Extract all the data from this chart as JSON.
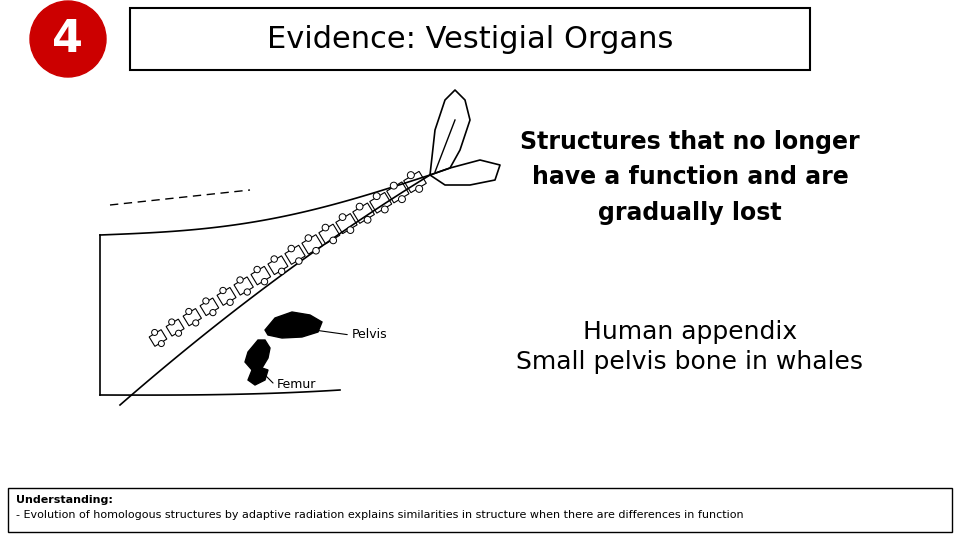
{
  "title": "Evidence: Vestigial Organs",
  "number": "4",
  "number_bg": "#cc0000",
  "number_color": "#ffffff",
  "bg_color": "#ffffff",
  "text1": "Structures that no longer\nhave a function and are\ngradually lost",
  "text2_line1": "Human appendix",
  "text2_line2": "Small pelvis bone in whales",
  "label_pelvis": "Pelvis",
  "label_femur": "Femur",
  "understanding_bold": "Understanding:",
  "understanding_text": "Evolution of homologous structures by adaptive radiation explains similarities in structure when there are differences in function",
  "title_fontsize": 22,
  "number_fontsize": 32,
  "text1_fontsize": 17,
  "text2_fontsize": 18,
  "label_fontsize": 9,
  "understanding_fontsize": 8
}
